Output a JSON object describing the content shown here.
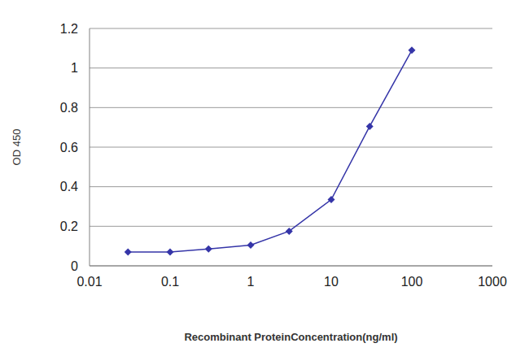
{
  "chart_data": {
    "type": "line",
    "x_label": "Recombinant ProteinConcentration(ng/ml)",
    "y_label": "OD 450",
    "x": [
      0.03,
      0.1,
      0.3,
      1,
      3,
      10,
      30,
      100
    ],
    "values": [
      0.07,
      0.07,
      0.085,
      0.105,
      0.175,
      0.335,
      0.705,
      1.09
    ],
    "color": "#3535a8",
    "marker": "diamond",
    "log": "x",
    "xlim": [
      0.01,
      1000
    ],
    "xticks": [
      0.01,
      0.1,
      1,
      10,
      100,
      1000
    ],
    "ylim": [
      0,
      1.2
    ],
    "yticks": [
      0,
      0.2,
      0.4,
      0.6,
      0.8,
      1,
      1.2
    ],
    "grid": true
  }
}
